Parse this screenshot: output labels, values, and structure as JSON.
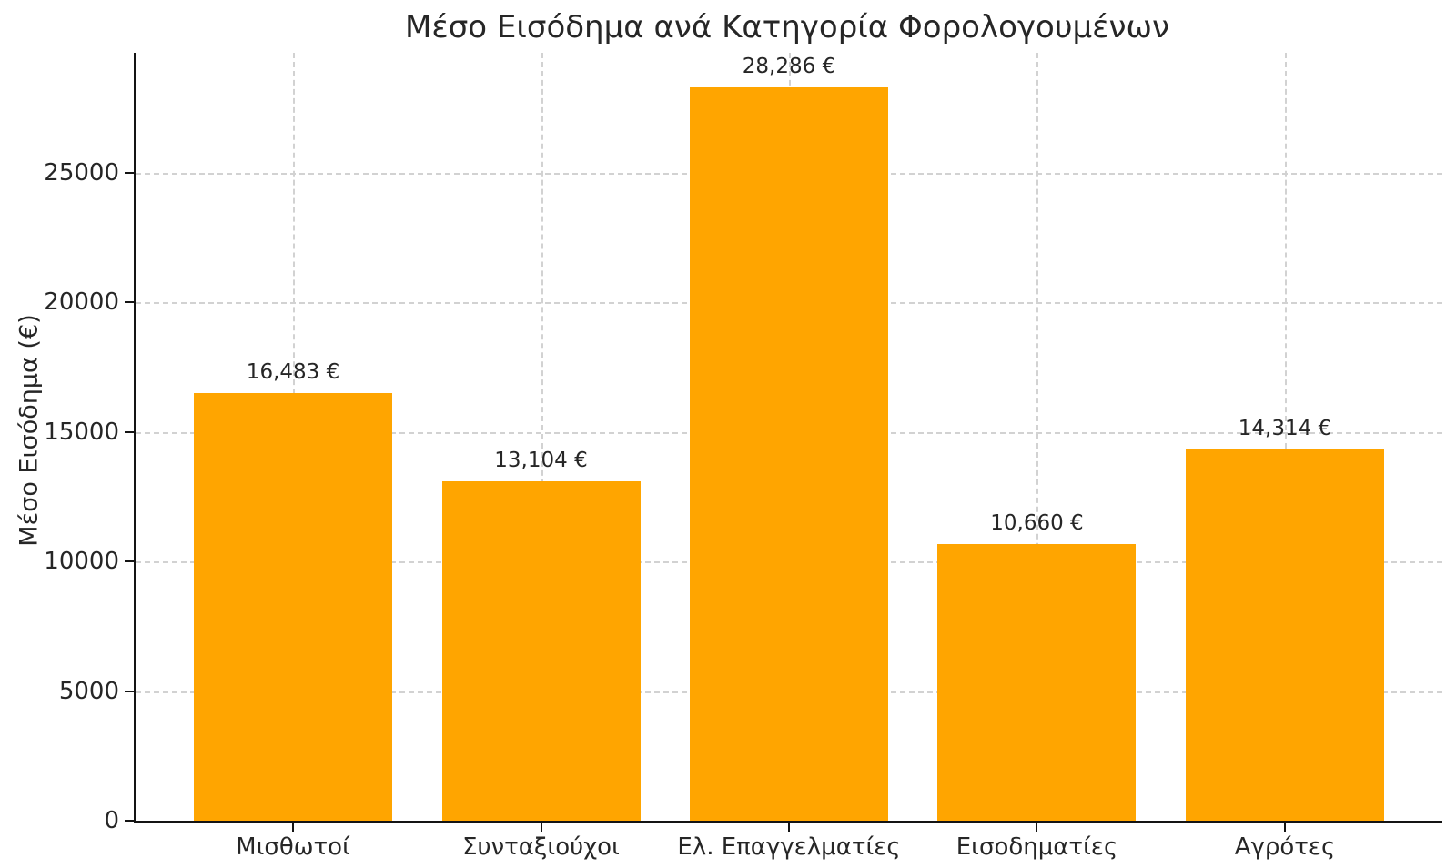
{
  "chart_data": {
    "type": "bar",
    "title": "Μέσο Εισόδημα ανά Κατηγορία Φορολογουμένων",
    "xlabel": "",
    "ylabel": "Μέσο Εισόδημα (€)",
    "categories": [
      "Μισθωτοί",
      "Συνταξιούχοι",
      "Ελ. Επαγγελματίες",
      "Εισοδηματίες",
      "Αγρότες"
    ],
    "values": [
      16483,
      13104,
      28286,
      10660,
      14314
    ],
    "value_labels": [
      "16,483 €",
      "13,104 €",
      "28,286 €",
      "10,660 €",
      "14,314 €"
    ],
    "yticks": [
      0,
      5000,
      10000,
      15000,
      20000,
      25000
    ],
    "ytick_labels": [
      "0",
      "5000",
      "10000",
      "15000",
      "20000",
      "25000"
    ],
    "ylim": [
      0,
      29620
    ],
    "bar_color": "#FFA500",
    "grid": "both-dashed",
    "grid_color": "#d2d2d2",
    "spine_color": "#141414",
    "legend_position": "none"
  }
}
